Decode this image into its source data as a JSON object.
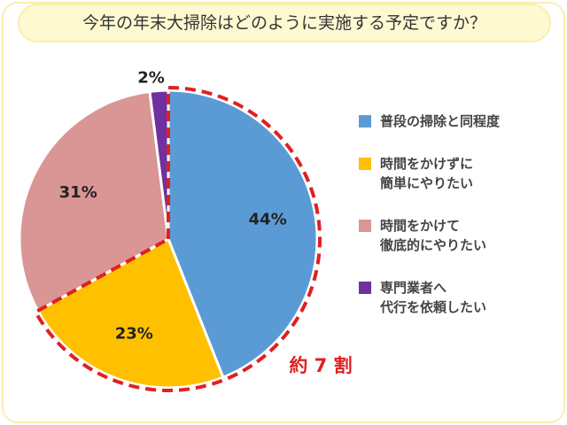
{
  "chart_data": {
    "type": "pie",
    "title": "今年の年末大掃除はどのように実施する予定ですか？",
    "categories": [
      "普段の掃除と同程度",
      "時間をかけずに\n簡単にやりたい",
      "時間をかけて\n徹底的にやりたい",
      "専門業者へ\n代行を依頼したい"
    ],
    "values": [
      44,
      23,
      31,
      2
    ],
    "value_labels": [
      "44%",
      "23%",
      "31%",
      "2%"
    ],
    "colors": [
      "#5b9bd5",
      "#ffc000",
      "#d99694",
      "#7030a0"
    ],
    "annotation": "約 7 割",
    "legend": "right"
  }
}
